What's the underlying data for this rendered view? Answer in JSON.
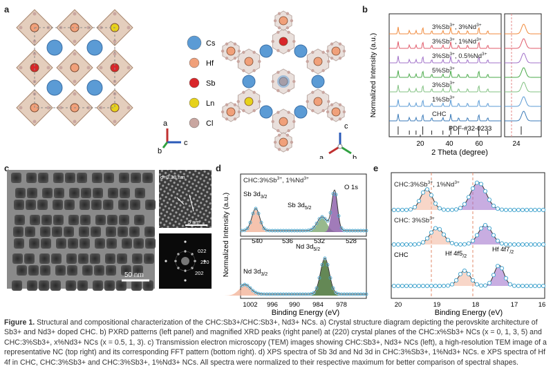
{
  "panels": {
    "a": "a",
    "b": "b",
    "c": "c",
    "d": "d",
    "e": "e"
  },
  "panel_a": {
    "legend": [
      "Cs",
      "Hf",
      "Sb",
      "Ln",
      "Cl"
    ],
    "legend_colors": [
      "#5b9bd5",
      "#f0a07a",
      "#d9262a",
      "#e6d21a",
      "#c9a6a0"
    ],
    "axes_left": [
      "a",
      "b",
      "c"
    ],
    "axes_right": [
      "c",
      "a",
      "b"
    ]
  },
  "panel_b": {
    "ylabel": "Normalized Intensity (a.u.)",
    "xlabel": "2 Theta (degree)",
    "ticks_main": [
      "20",
      "40",
      "60"
    ],
    "tick_zoom": "24",
    "labels": [
      "3%Sb3+, 3%Nd3+",
      "3%Sb3+, 1%Nd3+",
      "3%Sb3+, 0.5%Nd3+",
      "5%Sb3+",
      "3%Sb3+",
      "1%Sb3+",
      "CHC",
      "PDF-#32-0233"
    ],
    "label_parts": [
      [
        "3%Sb",
        "3+",
        ", 3%Nd",
        "3+"
      ],
      [
        "3%Sb",
        "3+",
        ", 1%Nd",
        "3+"
      ],
      [
        "3%Sb",
        "3+",
        ", 0.5%Nd",
        "3+"
      ],
      [
        "5%Sb",
        "3+"
      ],
      [
        "3%Sb",
        "3+"
      ],
      [
        "1%Sb",
        "3+"
      ],
      [
        "CHC"
      ],
      [
        "PDF-#32-0233"
      ]
    ],
    "colors": [
      "#f08a3c",
      "#e05a6a",
      "#a070c8",
      "#4aaa4a",
      "#80c080",
      "#5b9bd5",
      "#3a7ab8",
      "#222222"
    ]
  },
  "panel_c": {
    "scale_main": "50 nm",
    "lattice": "d=0.38 nm",
    "scale_hr": "5 nm",
    "fft": [
      "022",
      "220",
      "202"
    ]
  },
  "panel_d": {
    "title": "CHC:3%Sb3+, 1%Nd3+",
    "ylabel": "Normalized Intensity (a.u.)",
    "xlabel": "Binding Energy (eV)",
    "top_ticks": [
      "540",
      "536",
      "532",
      "528"
    ],
    "bottom_ticks": [
      "1002",
      "996",
      "990",
      "984",
      "978"
    ],
    "peaks_top": [
      "Sb 3d3/2",
      "Sb 3d5/2",
      "O 1s"
    ],
    "peaks_bottom": [
      "Nd 3d3/2",
      "Nd 3d5/2"
    ]
  },
  "panel_e": {
    "traces": [
      "CHC:3%Sb3+, 1%Nd3+",
      "CHC: 3%Sb3+",
      "CHC"
    ],
    "peaks": [
      "Hf 4f5/2",
      "Hf 4f7/2"
    ],
    "xlabel": "Binding Energy (eV)",
    "ticks": [
      "20",
      "19",
      "18",
      "17",
      "16"
    ]
  },
  "caption": {
    "figure": "Figure 1.",
    "text": "Structural and compositional characterization of the CHC:Sb3+/CHC:Sb3+, Nd3+ NCs. a) Crystal structure diagram depicting the perovskite architecture of Sb3+ and Nd3+ doped CHC. b) PXRD patterns (left panel) and magnified XRD peaks (right panel) at (220) crystal planes of the CHC:x%Sb3+ NCs (x = 0, 1, 3, 5) and CHC:3%Sb3+, x%Nd3+ NCs (x = 0.5, 1, 3). c) Transmission electron microscopy (TEM) images showing CHC:Sb3+, Nd3+ NCs (left), a high-resolution TEM image of a representative NC (top right) and its corresponding FFT pattern (bottom right). d) XPS spectra of Sb 3d and Nd 3d in CHC:3%Sb3+, 1%Nd3+ NCs. e XPS spectra of Hf 4f in CHC, CHC:3%Sb3+ and CHC:3%Sb3+, 1%Nd3+ NCs. All spectra were normalized to their respective maximum for better comparison of spectral shapes."
  }
}
